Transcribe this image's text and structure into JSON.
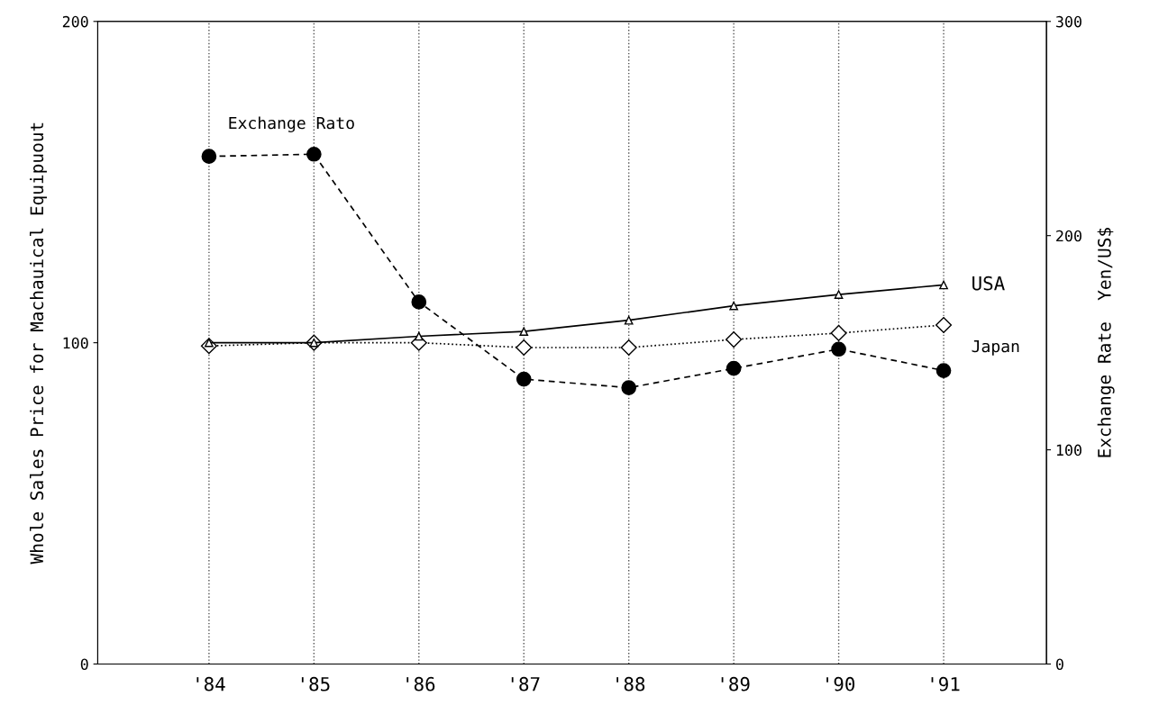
{
  "chart_data": {
    "type": "line",
    "categories": [
      "'84",
      "'85",
      "'86",
      "'87",
      "'88",
      "'89",
      "'90",
      "'91"
    ],
    "ylabel": "Whole Sales Price for Machauical Equipuout",
    "y2label": "Exchange Rate  Yen/US$",
    "ylim": [
      0,
      200
    ],
    "yticks": [
      0,
      100,
      200
    ],
    "y2lim": [
      0,
      300
    ],
    "y2ticks": [
      0,
      100,
      200,
      300
    ],
    "grid": "x",
    "series": [
      {
        "name": "USA",
        "color": "#000000",
        "marker": "triangle",
        "line_style": "solid",
        "values": [
          100,
          100,
          102,
          103.5,
          107,
          111.5,
          115,
          118
        ]
      },
      {
        "name": "Japan",
        "color": "#000000",
        "marker": "diamond",
        "line_style": "dotted",
        "values": [
          99,
          100,
          100,
          98.5,
          98.5,
          101,
          103,
          105.5
        ]
      },
      {
        "name": "Exchange Rato",
        "color": "#000000",
        "marker": "circle",
        "line_style": "dashed",
        "axis": "y2",
        "values": [
          237,
          238,
          169,
          133,
          129,
          138,
          147,
          137
        ]
      }
    ]
  }
}
